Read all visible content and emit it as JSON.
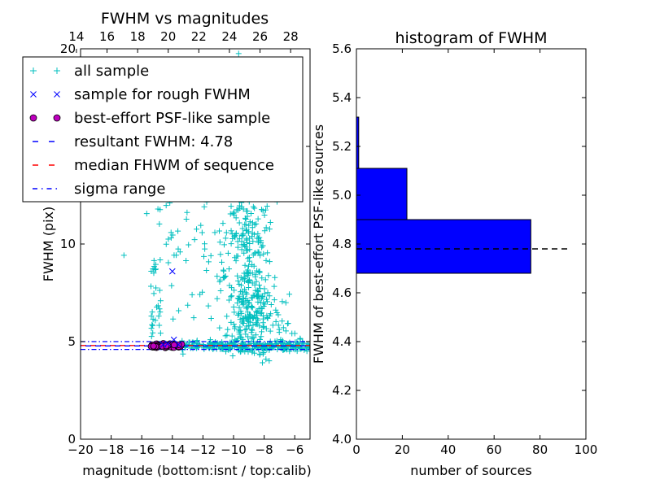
{
  "chart_data": [
    {
      "type": "scatter",
      "title": "FWHM vs magnitudes",
      "xlabel": "magnitude (bottom:isnt / top:calib)",
      "ylabel": "FWHM (pix)",
      "xlim": [
        -20,
        -5
      ],
      "ylim": [
        0,
        20
      ],
      "x_ticks": [
        "−20",
        "−18",
        "−16",
        "−14",
        "−12",
        "−10",
        "−8",
        "−6"
      ],
      "x_tick_values": [
        -20,
        -18,
        -16,
        -14,
        -12,
        -10,
        -8,
        -6
      ],
      "top_ticks": [
        "14",
        "16",
        "18",
        "20",
        "22",
        "24",
        "26",
        "28"
      ],
      "top_tick_values": [
        -20.27,
        -18.27,
        -16.27,
        -14.27,
        -12.27,
        -10.27,
        -8.27,
        -6.27
      ],
      "y_ticks": [
        "0",
        "5",
        "10",
        "15",
        "20"
      ],
      "y_tick_values": [
        0,
        5,
        10,
        15,
        20
      ],
      "resultant_fwhm": 4.78,
      "median_fwhm": 4.8,
      "sigma_range": [
        4.6,
        5.0
      ],
      "rough_sample": [
        {
          "x": -14.0,
          "y": 8.6
        },
        {
          "x": -13.9,
          "y": 5.1
        },
        {
          "x": -14.3,
          "y": 4.9
        },
        {
          "x": -14.6,
          "y": 4.85
        },
        {
          "x": -13.6,
          "y": 4.85
        }
      ],
      "legend": {
        "placement": "top-left",
        "entries": [
          {
            "label": "all sample",
            "color": "#00bfbf",
            "marker": "plus"
          },
          {
            "label": "sample for rough FWHM",
            "color": "#0000ff",
            "marker": "x"
          },
          {
            "label": "best-effort PSF-like sample",
            "color": "#bf00bf",
            "marker": "circle"
          },
          {
            "label": "resultant FWHM: 4.78",
            "color": "#0000ff",
            "marker": "dashed"
          },
          {
            "label": "median FHWM of sequence",
            "color": "#ff0000",
            "marker": "dashed"
          },
          {
            "label": "sigma range",
            "color": "#0000ff",
            "marker": "dashdot"
          }
        ]
      }
    },
    {
      "type": "bar",
      "orientation": "horizontal",
      "title": "histogram of FWHM",
      "xlabel": "number of sources",
      "ylabel": "FWHM of best-effort PSF-like sources",
      "xlim": [
        0,
        100
      ],
      "ylim": [
        4.0,
        5.6
      ],
      "x_ticks": [
        "0",
        "20",
        "40",
        "60",
        "80",
        "100"
      ],
      "x_tick_values": [
        0,
        20,
        40,
        60,
        80,
        100
      ],
      "y_ticks": [
        "4.0",
        "4.2",
        "4.4",
        "4.6",
        "4.8",
        "5.0",
        "5.2",
        "5.4",
        "5.6"
      ],
      "y_tick_values": [
        4.0,
        4.2,
        4.4,
        4.6,
        4.8,
        5.0,
        5.2,
        5.4,
        5.6
      ],
      "bins": [
        {
          "low": 4.68,
          "high": 4.9,
          "count": 76
        },
        {
          "low": 4.9,
          "high": 5.11,
          "count": 22
        },
        {
          "low": 5.11,
          "high": 5.32,
          "count": 1
        }
      ],
      "bar_color": "#0000ff",
      "resultant_fwhm": 4.78,
      "line_extent": [
        0,
        92
      ]
    }
  ]
}
